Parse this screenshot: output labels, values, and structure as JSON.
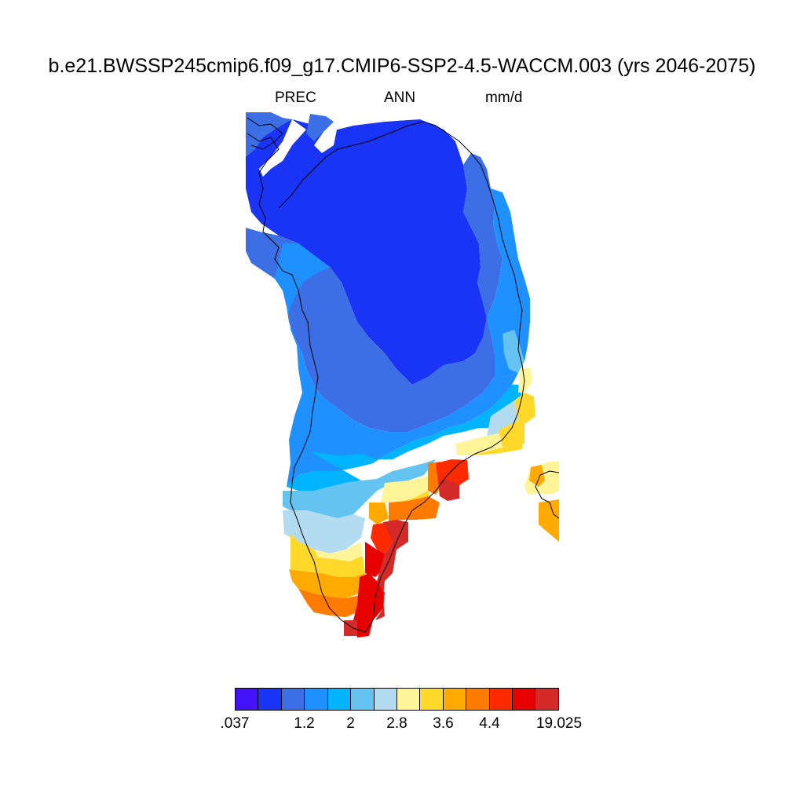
{
  "figure": {
    "title": "b.e21.BWSSP245cmip6.f09_g17.CMIP6-SSP2-4.5-WACCM.003 (yrs 2046-2075)",
    "variable": "PREC",
    "season": "ANN",
    "units": "mm/d"
  },
  "colorbar": {
    "colors": [
      "#4212f8",
      "#1a34f5",
      "#3c6ee6",
      "#1e90ff",
      "#00b4ff",
      "#64c3f0",
      "#b4dcf0",
      "#fff598",
      "#ffd82a",
      "#ffaa00",
      "#ff7b00",
      "#ff2a00",
      "#e60000",
      "#d42a2a"
    ],
    "labels": [
      ".037",
      "1.2",
      "2",
      "2.8",
      "3.6",
      "4.4",
      "19.025"
    ],
    "label_boundary_index": [
      0,
      3,
      5,
      7,
      9,
      11,
      14
    ]
  },
  "colors": {
    "background": "#ffffff",
    "coastline": "#000000"
  }
}
